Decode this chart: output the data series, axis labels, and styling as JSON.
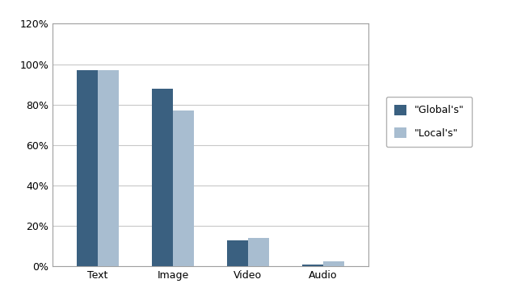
{
  "categories": [
    "Text",
    "Image",
    "Video",
    "Audio"
  ],
  "globals": [
    0.97,
    0.88,
    0.13,
    0.01
  ],
  "locals": [
    0.97,
    0.77,
    0.14,
    0.025
  ],
  "color_globals": "#3A6080",
  "color_locals": "#A8BDD0",
  "legend_labels": [
    "\"Global's\"",
    "\"Local's\""
  ],
  "ylim": [
    0,
    1.2
  ],
  "yticks": [
    0,
    0.2,
    0.4,
    0.6,
    0.8,
    1.0,
    1.2
  ],
  "ytick_labels": [
    "0%",
    "20%",
    "40%",
    "60%",
    "80%",
    "100%",
    "120%"
  ],
  "bar_width": 0.28,
  "background_color": "#ffffff",
  "grid_color": "#c8c8c8",
  "border_color": "#a0a0a0"
}
